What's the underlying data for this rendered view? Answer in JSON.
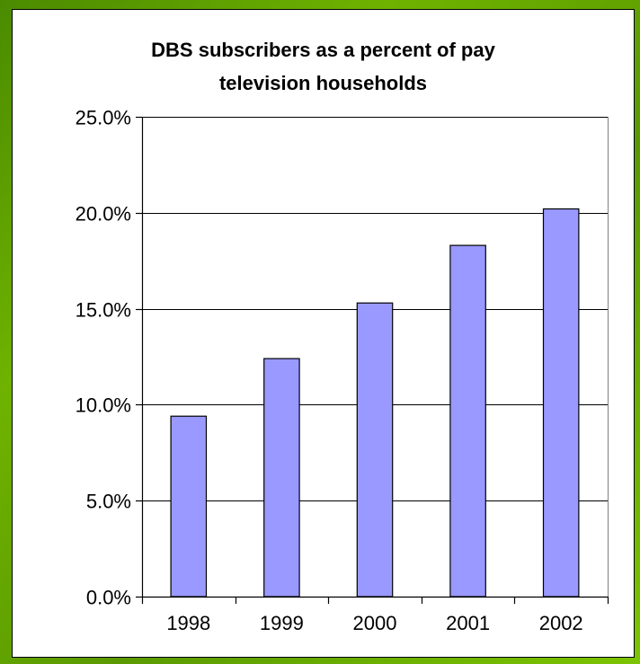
{
  "chart_data": {
    "type": "bar",
    "title_lines": [
      "DBS subscribers as a percent of pay",
      "television households"
    ],
    "categories": [
      "1998",
      "1999",
      "2000",
      "2001",
      "2002"
    ],
    "values": [
      9.4,
      12.4,
      15.3,
      18.3,
      20.2
    ],
    "ylim": [
      0,
      25
    ],
    "yticks": [
      0,
      5,
      10,
      15,
      20,
      25
    ],
    "ytick_labels": [
      "0.0%",
      "5.0%",
      "10.0%",
      "15.0%",
      "20.0%",
      "25.0%"
    ],
    "grid": true,
    "bar_color": "#9999ff",
    "frame_color": "#6fb300"
  }
}
